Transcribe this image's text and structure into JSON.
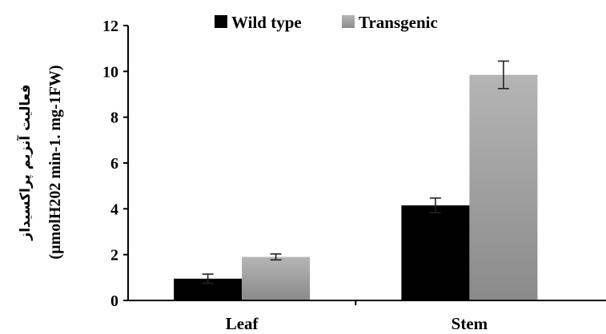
{
  "chart_data": {
    "type": "bar",
    "title": "",
    "xlabel": "",
    "ylabel_fa": "فعالیت آنزیم پراکسیداز",
    "ylabel_unit": "(µmolH202 min-1. mg-1FW)",
    "categories": [
      "Leaf",
      "Stem"
    ],
    "ylim": [
      0,
      12
    ],
    "yticks": [
      0,
      2,
      4,
      6,
      8,
      10,
      12
    ],
    "legend_position": "top",
    "series": [
      {
        "name": "Wild type",
        "values": [
          0.95,
          4.15
        ],
        "errors": [
          0.2,
          0.32
        ],
        "color": "#000000"
      },
      {
        "name": "Transgenic",
        "values": [
          1.9,
          9.85
        ],
        "errors": [
          0.13,
          0.6
        ],
        "color": "#9a9a9a"
      }
    ],
    "grid": false
  }
}
